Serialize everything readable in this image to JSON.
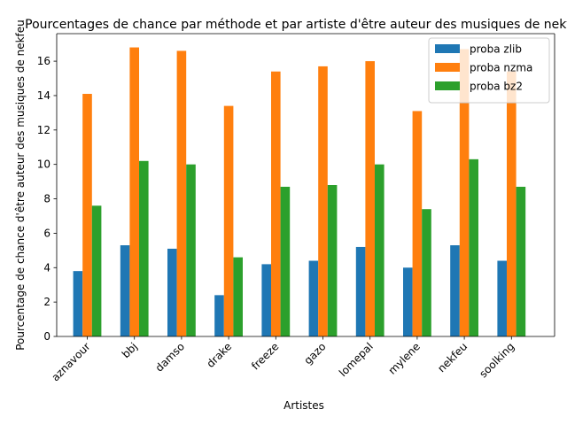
{
  "chart_data": {
    "type": "bar",
    "title": "Pourcentages de chance par méthode et par artiste d'être auteur des musiques de nekfeu",
    "xlabel": "Artistes",
    "ylabel": "Pourcentage de chance d'être auteur des musiques de nekfeu",
    "categories": [
      "aznavour",
      "bbj",
      "damso",
      "drake",
      "freeze",
      "gazo",
      "lomepal",
      "mylene",
      "nekfeu",
      "soolking"
    ],
    "ylim": [
      0,
      17.6
    ],
    "yticks": [
      0,
      2,
      4,
      6,
      8,
      10,
      12,
      14,
      16
    ],
    "grid": false,
    "legend_position": "top-right",
    "series": [
      {
        "name": "proba zlib",
        "color": "#1f77b4",
        "values": [
          3.8,
          5.3,
          5.1,
          2.4,
          4.2,
          4.4,
          5.2,
          4.0,
          5.3,
          4.4
        ]
      },
      {
        "name": "proba nzma",
        "color": "#ff7f0e",
        "values": [
          14.1,
          16.8,
          16.6,
          13.4,
          15.4,
          15.7,
          16.0,
          13.1,
          16.7,
          15.4
        ]
      },
      {
        "name": "proba bz2",
        "color": "#2ca02c",
        "values": [
          7.6,
          10.2,
          10.0,
          4.6,
          8.7,
          8.8,
          10.0,
          7.4,
          10.3,
          8.7
        ]
      }
    ]
  }
}
